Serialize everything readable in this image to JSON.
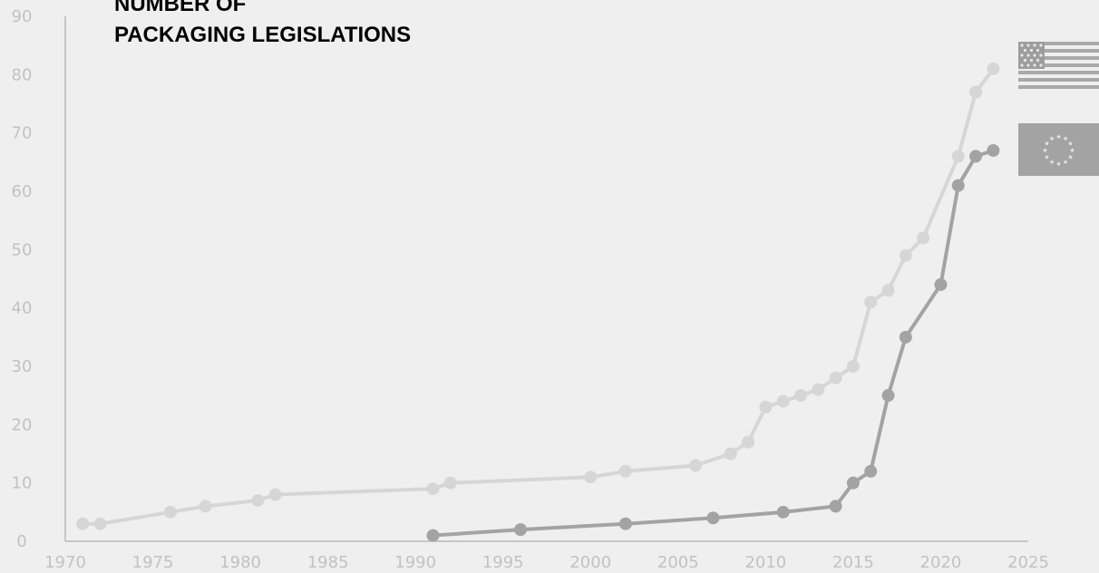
{
  "title_lines": [
    "NUMBER OF",
    "PACKAGING LEGISLATIONS"
  ],
  "chart_data": {
    "type": "line",
    "title": "NUMBER OF PACKAGING LEGISLATIONS",
    "xlim": [
      1970,
      2025
    ],
    "ylim": [
      0,
      90
    ],
    "xticks": [
      1970,
      1975,
      1980,
      1985,
      1990,
      1995,
      2000,
      2005,
      2010,
      2015,
      2020,
      2025
    ],
    "yticks": [
      0,
      10,
      20,
      30,
      40,
      50,
      60,
      70,
      80,
      90
    ],
    "grid": false,
    "legend": "right (flag icons)",
    "series": [
      {
        "flag": "us-flag-icon",
        "color": "#d6d6d6",
        "points": [
          [
            1971,
            3
          ],
          [
            1972,
            3
          ],
          [
            1976,
            5
          ],
          [
            1978,
            6
          ],
          [
            1981,
            7
          ],
          [
            1982,
            8
          ],
          [
            1991,
            9
          ],
          [
            1992,
            10
          ],
          [
            2000,
            11
          ],
          [
            2002,
            12
          ],
          [
            2006,
            13
          ],
          [
            2008,
            15
          ],
          [
            2009,
            17
          ],
          [
            2010,
            23
          ],
          [
            2011,
            24
          ],
          [
            2012,
            25
          ],
          [
            2013,
            26
          ],
          [
            2014,
            28
          ],
          [
            2015,
            30
          ],
          [
            2016,
            41
          ],
          [
            2017,
            43
          ],
          [
            2018,
            49
          ],
          [
            2019,
            52
          ],
          [
            2021,
            66
          ],
          [
            2022,
            77
          ],
          [
            2023,
            81
          ]
        ]
      },
      {
        "flag": "eu-flag-icon",
        "color": "#a3a3a3",
        "points": [
          [
            1991,
            1
          ],
          [
            1996,
            2
          ],
          [
            2002,
            3
          ],
          [
            2007,
            4
          ],
          [
            2011,
            5
          ],
          [
            2014,
            6
          ],
          [
            2015,
            10
          ],
          [
            2016,
            12
          ],
          [
            2017,
            25
          ],
          [
            2018,
            35
          ],
          [
            2020,
            44
          ],
          [
            2021,
            61
          ],
          [
            2022,
            66
          ],
          [
            2023,
            67
          ]
        ]
      }
    ],
    "colors": {
      "axis": "#b8b8b8",
      "tick_text": "#c2c2c2",
      "background": "#efefef"
    }
  }
}
